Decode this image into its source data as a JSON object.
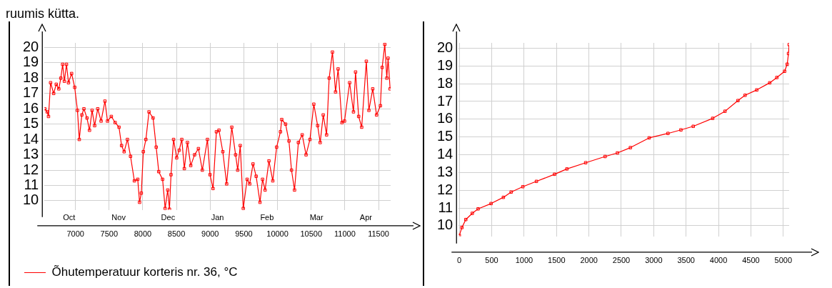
{
  "chart_data": [
    {
      "type": "line",
      "annotations": [
        "ruumis kütta.",
        "Oct",
        "Nov",
        "Dec",
        "Jan",
        "Feb",
        "Mar",
        "Apr"
      ],
      "xlim": [
        6540,
        11680
      ],
      "xticks": [
        7000,
        7500,
        8000,
        8500,
        9000,
        9500,
        10000,
        10500,
        11000,
        11500
      ],
      "ylim": [
        9.4,
        20.3
      ],
      "yticks": [
        10,
        11,
        12,
        13,
        14,
        15,
        16,
        17,
        18,
        19,
        20
      ],
      "grid": true,
      "legend": "bottom",
      "marker": "square",
      "line_style": "solid",
      "series": [
        {
          "name": "Õhutemperatuur korteris nr. 36, °C",
          "color": "#ff0000",
          "x": [
            6545,
            6581,
            6600,
            6631,
            6677,
            6715,
            6753,
            6783,
            6810,
            6836,
            6867,
            6897,
            6943,
            6989,
            7030,
            7057,
            7095,
            7126,
            7171,
            7209,
            7247,
            7285,
            7331,
            7381,
            7438,
            7476,
            7533,
            7590,
            7647,
            7685,
            7723,
            7772,
            7818,
            7875,
            7925,
            7952,
            7978,
            8008,
            8046,
            8092,
            8153,
            8199,
            8237,
            8294,
            8332,
            8370,
            8396,
            8419,
            8457,
            8503,
            8541,
            8579,
            8617,
            8663,
            8712,
            8769,
            8826,
            8884,
            8960,
            8998,
            9043,
            9093,
            9131,
            9188,
            9245,
            9321,
            9378,
            9409,
            9447,
            9492,
            9549,
            9587,
            9637,
            9683,
            9740,
            9778,
            9816,
            9873,
            9930,
            9987,
            10044,
            10063,
            10120,
            10170,
            10208,
            10253,
            10310,
            10367,
            10424,
            10482,
            10539,
            10596,
            10634,
            10679,
            10729,
            10767,
            10816,
            10862,
            10900,
            10957,
            10995,
            11071,
            11128,
            11159,
            11205,
            11250,
            11319,
            11357,
            11414,
            11471,
            11528,
            11554,
            11593,
            11623,
            11642,
            11672
          ],
          "values": [
            16.0,
            15.8,
            15.5,
            17.7,
            17.0,
            17.6,
            17.3,
            18.0,
            18.9,
            17.8,
            18.9,
            17.7,
            18.3,
            17.4,
            15.9,
            14.0,
            15.6,
            16.0,
            15.4,
            14.6,
            15.9,
            14.9,
            16.0,
            15.2,
            16.5,
            15.2,
            15.5,
            15.1,
            14.8,
            13.6,
            13.2,
            14.0,
            12.9,
            11.3,
            11.4,
            9.9,
            10.5,
            13.2,
            14.0,
            15.8,
            15.4,
            13.5,
            11.9,
            11.4,
            9.5,
            10.7,
            9.45,
            11.7,
            14.0,
            12.8,
            13.3,
            14.0,
            12.1,
            13.8,
            12.3,
            13.0,
            13.4,
            12.0,
            14.0,
            11.7,
            10.8,
            14.5,
            14.6,
            13.2,
            11.1,
            14.8,
            13.0,
            12.0,
            13.6,
            9.5,
            11.4,
            11.1,
            12.4,
            11.6,
            9.9,
            11.4,
            10.7,
            12.6,
            11.3,
            13.5,
            14.5,
            15.3,
            15.0,
            13.9,
            12.0,
            10.7,
            13.8,
            14.3,
            13.0,
            14.0,
            16.3,
            14.9,
            13.8,
            15.6,
            14.3,
            18.0,
            19.7,
            17.1,
            18.6,
            15.1,
            15.2,
            17.7,
            15.8,
            18.4,
            15.5,
            14.8,
            19.1,
            15.9,
            17.3,
            15.6,
            16.2,
            18.7,
            20.2,
            18.0,
            19.3,
            17.3
          ]
        }
      ]
    },
    {
      "type": "line",
      "xlim": [
        -10,
        5090
      ],
      "xticks": [
        0,
        500,
        1000,
        1500,
        2000,
        2500,
        3000,
        3500,
        4000,
        4500,
        5000
      ],
      "ylim": [
        9.4,
        20.3
      ],
      "yticks": [
        10,
        11,
        12,
        13,
        14,
        15,
        16,
        17,
        18,
        19,
        20
      ],
      "grid": true,
      "marker": "square",
      "line_style": "solid",
      "series": [
        {
          "color": "#ff0000",
          "x": [
            0,
            40,
            100,
            200,
            290,
            490,
            680,
            800,
            980,
            1190,
            1470,
            1660,
            1950,
            2250,
            2440,
            2640,
            2930,
            3220,
            3420,
            3610,
            3910,
            4100,
            4300,
            4410,
            4590,
            4790,
            4900,
            5020,
            5060,
            5080,
            5090
          ],
          "values": [
            9.45,
            9.9,
            10.35,
            10.7,
            10.95,
            11.25,
            11.6,
            11.9,
            12.2,
            12.5,
            12.9,
            13.2,
            13.55,
            13.9,
            14.1,
            14.4,
            14.95,
            15.2,
            15.4,
            15.6,
            16.05,
            16.45,
            17.05,
            17.35,
            17.65,
            18.05,
            18.35,
            18.7,
            19.1,
            19.7,
            20.2
          ]
        }
      ]
    }
  ]
}
